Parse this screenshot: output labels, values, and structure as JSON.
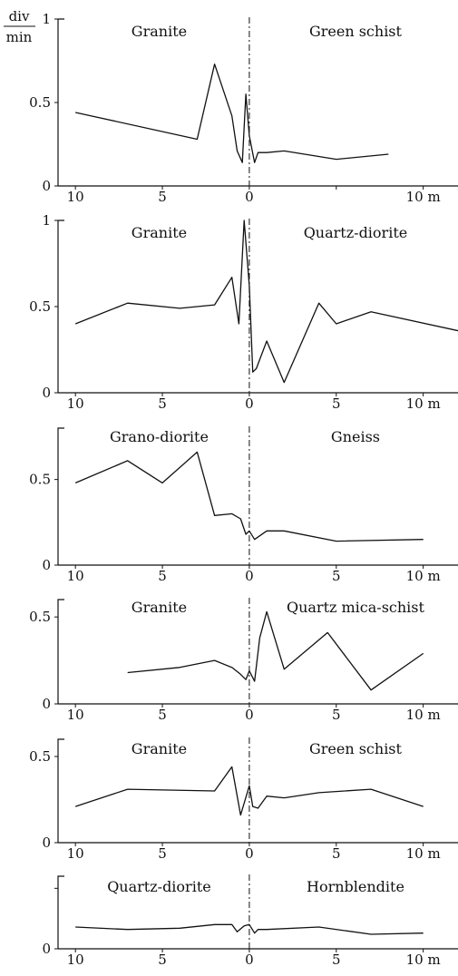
{
  "y_unit": {
    "numerator": "div",
    "denominator": "min"
  },
  "x_unit": "m",
  "chart_data": [
    {
      "type": "line",
      "left_label": "Granite",
      "right_label": "Green schist",
      "ylim": [
        0,
        1
      ],
      "yticks": [
        "0",
        "0.5",
        "1"
      ],
      "xlim": [
        -11,
        12
      ],
      "xticks": [
        {
          "x": -10,
          "label": "10"
        },
        {
          "x": -5,
          "label": "5"
        },
        {
          "x": 0,
          "label": "0"
        },
        {
          "x": 5,
          "label": ""
        },
        {
          "x": 10,
          "label": "10 m"
        }
      ],
      "x": [
        -10,
        -3,
        -2,
        -1,
        -0.7,
        -0.4,
        -0.2,
        0,
        0.3,
        0.5,
        1,
        2,
        5,
        8
      ],
      "y": [
        0.44,
        0.28,
        0.73,
        0.42,
        0.21,
        0.14,
        0.55,
        0.3,
        0.14,
        0.2,
        0.2,
        0.21,
        0.16,
        0.19
      ]
    },
    {
      "type": "line",
      "left_label": "Granite",
      "right_label": "Quartz-diorite",
      "ylim": [
        0,
        1
      ],
      "yticks": [
        "0",
        "0.5",
        "1"
      ],
      "xlim": [
        -11,
        12
      ],
      "xticks": [
        {
          "x": -10,
          "label": "10"
        },
        {
          "x": -5,
          "label": "5"
        },
        {
          "x": 0,
          "label": "0"
        },
        {
          "x": 5,
          "label": "5"
        },
        {
          "x": 10,
          "label": "10 m"
        }
      ],
      "x": [
        -10,
        -7,
        -4,
        -2,
        -1,
        -0.6,
        -0.3,
        0,
        0.2,
        0.4,
        1,
        2,
        4,
        5,
        7,
        12
      ],
      "y": [
        0.4,
        0.52,
        0.49,
        0.51,
        0.67,
        0.4,
        1.0,
        0.62,
        0.12,
        0.14,
        0.3,
        0.06,
        0.52,
        0.4,
        0.47,
        0.36
      ]
    },
    {
      "type": "line",
      "left_label": "Grano-diorite",
      "right_label": "Gneiss",
      "ylim": [
        0,
        0.8
      ],
      "yticks": [
        "0",
        "0.5",
        ""
      ],
      "xlim": [
        -11,
        12
      ],
      "xticks": [
        {
          "x": -10,
          "label": "10"
        },
        {
          "x": -5,
          "label": "5"
        },
        {
          "x": 0,
          "label": "0"
        },
        {
          "x": 5,
          "label": "5"
        },
        {
          "x": 10,
          "label": "10 m"
        }
      ],
      "x": [
        -10,
        -7,
        -5,
        -3,
        -2,
        -1,
        -0.5,
        -0.2,
        0,
        0.3,
        1,
        2,
        5,
        10
      ],
      "y": [
        0.48,
        0.61,
        0.48,
        0.66,
        0.29,
        0.3,
        0.27,
        0.18,
        0.2,
        0.15,
        0.2,
        0.2,
        0.14,
        0.15
      ]
    },
    {
      "type": "line",
      "left_label": "Granite",
      "right_label": "Quartz mica-schist",
      "ylim": [
        0,
        0.6
      ],
      "yticks": [
        "0",
        "0.5",
        ""
      ],
      "xlim": [
        -11,
        12
      ],
      "xticks": [
        {
          "x": -10,
          "label": "10"
        },
        {
          "x": -5,
          "label": "5"
        },
        {
          "x": 0,
          "label": "0"
        },
        {
          "x": 5,
          "label": "5"
        },
        {
          "x": 10,
          "label": "10 m"
        }
      ],
      "x": [
        -7,
        -4,
        -2,
        -1,
        -0.5,
        -0.2,
        0,
        0.3,
        0.6,
        1,
        2,
        4.5,
        7,
        10
      ],
      "y": [
        0.18,
        0.21,
        0.25,
        0.21,
        0.17,
        0.14,
        0.19,
        0.13,
        0.38,
        0.53,
        0.2,
        0.41,
        0.08,
        0.29
      ]
    },
    {
      "type": "line",
      "left_label": "Granite",
      "right_label": "Green schist",
      "ylim": [
        0,
        0.6
      ],
      "yticks": [
        "0",
        "0.5",
        ""
      ],
      "xlim": [
        -11,
        12
      ],
      "xticks": [
        {
          "x": -10,
          "label": "10"
        },
        {
          "x": -5,
          "label": "5"
        },
        {
          "x": 0,
          "label": "0"
        },
        {
          "x": 5,
          "label": "5"
        },
        {
          "x": 10,
          "label": "10 m"
        }
      ],
      "x": [
        -10,
        -7,
        -2,
        -1,
        -0.5,
        0,
        0.2,
        0.5,
        1,
        2,
        4,
        7,
        10
      ],
      "y": [
        0.21,
        0.31,
        0.3,
        0.44,
        0.16,
        0.33,
        0.21,
        0.2,
        0.27,
        0.26,
        0.29,
        0.31,
        0.21
      ]
    },
    {
      "type": "line",
      "left_label": "Quartz-diorite",
      "right_label": "Hornblendite",
      "ylim": [
        0,
        0.6
      ],
      "yticks": [
        "0",
        "",
        ""
      ],
      "xlim": [
        -11,
        12
      ],
      "xticks": [
        {
          "x": -10,
          "label": "10"
        },
        {
          "x": -5,
          "label": "5"
        },
        {
          "x": 0,
          "label": "0"
        },
        {
          "x": 5,
          "label": "5"
        },
        {
          "x": 10,
          "label": "10 m"
        }
      ],
      "x": [
        -10,
        -7,
        -4,
        -2,
        -1,
        -0.7,
        -0.3,
        0,
        0.3,
        0.5,
        1,
        4,
        7,
        10
      ],
      "y": [
        0.18,
        0.16,
        0.17,
        0.2,
        0.2,
        0.14,
        0.19,
        0.2,
        0.13,
        0.16,
        0.16,
        0.18,
        0.12,
        0.13
      ]
    }
  ]
}
